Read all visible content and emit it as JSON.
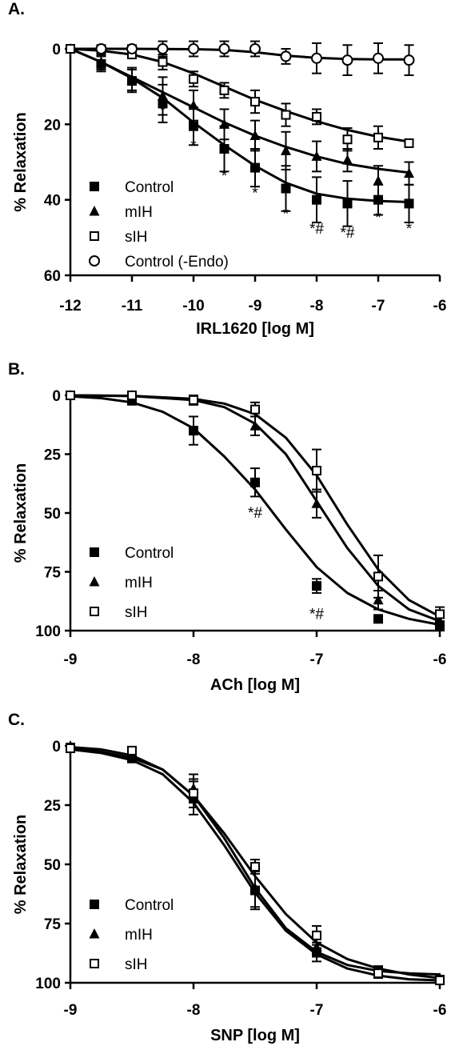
{
  "chart_data": [
    {
      "type": "line",
      "panel_label": "A.",
      "xlabel": "IRL1620 [log M]",
      "ylabel": "% Relaxation",
      "xlim": [
        -12,
        -6
      ],
      "ylim": [
        0,
        60
      ],
      "y_inverted": true,
      "xticks": [
        -12,
        -11,
        -10,
        -9,
        -8,
        -7,
        -6
      ],
      "yticks": [
        0,
        20,
        40,
        60
      ],
      "legend": "bottom-left",
      "series": [
        {
          "name": "Control",
          "marker": "square-filled",
          "x": [
            -12,
            -11.5,
            -11,
            -10.5,
            -10,
            -9.5,
            -9,
            -8.5,
            -8,
            -7.5,
            -7,
            -6.5
          ],
          "y": [
            0,
            4,
            8.5,
            14.5,
            20.5,
            26.5,
            31.5,
            37,
            40,
            41,
            40,
            41
          ],
          "err": [
            0,
            2,
            3,
            5,
            5,
            6,
            5,
            6,
            6,
            6,
            4,
            5
          ],
          "fit": [
            [
              -12,
              0
            ],
            [
              -11.5,
              3.5
            ],
            [
              -11,
              7.8
            ],
            [
              -10.5,
              13
            ],
            [
              -10,
              19.5
            ],
            [
              -9.5,
              25.5
            ],
            [
              -9,
              31
            ],
            [
              -8.5,
              35.5
            ],
            [
              -8,
              38.4
            ],
            [
              -7.5,
              39.7
            ],
            [
              -7,
              40.3
            ],
            [
              -6.5,
              40.6
            ]
          ]
        },
        {
          "name": "mIH",
          "marker": "triangle-filled",
          "x": [
            -12,
            -11.5,
            -11,
            -10.5,
            -10,
            -9.5,
            -9,
            -8.5,
            -8,
            -7.5,
            -7,
            -6.5
          ],
          "y": [
            0,
            3.5,
            8,
            12.5,
            15,
            20,
            23,
            27,
            28.5,
            29.5,
            35,
            33
          ],
          "err": [
            0,
            2,
            3,
            5,
            4,
            4,
            4,
            5,
            4,
            3,
            4,
            3
          ],
          "fit": [
            [
              -12,
              0
            ],
            [
              -11.5,
              3.5
            ],
            [
              -11,
              7.5
            ],
            [
              -10.5,
              11.5
            ],
            [
              -10,
              15.5
            ],
            [
              -9.5,
              19.5
            ],
            [
              -9,
              23
            ],
            [
              -8.5,
              26
            ],
            [
              -8,
              28.5
            ],
            [
              -7.5,
              30.5
            ],
            [
              -7,
              31.8
            ],
            [
              -6.5,
              32.8
            ]
          ]
        },
        {
          "name": "sIH",
          "marker": "square-open",
          "x": [
            -12,
            -11.5,
            -11,
            -10.5,
            -10,
            -9.5,
            -9,
            -8.5,
            -8,
            -7.5,
            -7,
            -6.5
          ],
          "y": [
            0,
            0.5,
            1.5,
            3.5,
            8,
            11,
            14,
            17.5,
            18,
            24,
            23.5,
            25
          ],
          "err": [
            0,
            1,
            1,
            2,
            2,
            2,
            3,
            3,
            2,
            3,
            3,
            1
          ],
          "fit": [
            [
              -12,
              0
            ],
            [
              -11.5,
              0.5
            ],
            [
              -11,
              1.5
            ],
            [
              -10.5,
              3.5
            ],
            [
              -10,
              6.5
            ],
            [
              -9.5,
              10
            ],
            [
              -9,
              13.5
            ],
            [
              -8.5,
              16.5
            ],
            [
              -8,
              19.2
            ],
            [
              -7.5,
              21.5
            ],
            [
              -7,
              23.3
            ],
            [
              -6.5,
              24.6
            ]
          ]
        },
        {
          "name": "Control (-Endo)",
          "marker": "circle-open",
          "x": [
            -11.5,
            -11,
            -10.5,
            -10,
            -9.5,
            -9,
            -8.5,
            -8,
            -7.5,
            -7,
            -6.5
          ],
          "y": [
            0,
            0,
            0,
            0,
            0,
            0,
            2,
            2.5,
            3,
            2.5,
            3
          ],
          "err": [
            1,
            1,
            2,
            2,
            2,
            2,
            2,
            4,
            4,
            4,
            4
          ],
          "fit": [
            [
              -12,
              0
            ],
            [
              -11,
              0
            ],
            [
              -10,
              0.1
            ],
            [
              -9.5,
              0.3
            ],
            [
              -9,
              0.9
            ],
            [
              -8.5,
              1.8
            ],
            [
              -8,
              2.4
            ],
            [
              -7.5,
              2.7
            ],
            [
              -7,
              2.8
            ],
            [
              -6.5,
              2.8
            ]
          ]
        }
      ],
      "annotations": [
        {
          "x": -10.5,
          "y": 17.5,
          "text": "*"
        },
        {
          "x": -10,
          "y": 27,
          "text": "*"
        },
        {
          "x": -9.5,
          "y": 35,
          "text": "*"
        },
        {
          "x": -9,
          "y": 39.5,
          "text": "*"
        },
        {
          "x": -8.5,
          "y": 45,
          "text": "*"
        },
        {
          "x": -8,
          "y": 49,
          "text": "*#"
        },
        {
          "x": -7.5,
          "y": 50,
          "text": "*#"
        },
        {
          "x": -7,
          "y": 46,
          "text": "*"
        },
        {
          "x": -6.5,
          "y": 49,
          "text": "*"
        }
      ]
    },
    {
      "type": "line",
      "panel_label": "B.",
      "xlabel": "ACh [log M]",
      "ylabel": "% Relaxation",
      "xlim": [
        -9,
        -6
      ],
      "ylim": [
        0,
        100
      ],
      "y_inverted": true,
      "xticks": [
        -9,
        -8,
        -7,
        -6
      ],
      "yticks": [
        0,
        25,
        50,
        75,
        100
      ],
      "legend": "bottom-left",
      "series": [
        {
          "name": "Control",
          "marker": "square-filled",
          "x": [
            -9,
            -8.5,
            -8,
            -7.5,
            -7,
            -6.5,
            -6
          ],
          "y": [
            0,
            2,
            15,
            37,
            81,
            95,
            98
          ],
          "err": [
            1,
            2,
            6,
            6,
            3,
            1,
            2
          ],
          "fit": [
            [
              -9,
              0.4
            ],
            [
              -8.75,
              1.2
            ],
            [
              -8.5,
              3
            ],
            [
              -8.25,
              7
            ],
            [
              -8,
              14
            ],
            [
              -7.75,
              26
            ],
            [
              -7.5,
              40
            ],
            [
              -7.25,
              57
            ],
            [
              -7,
              73
            ],
            [
              -6.75,
              84
            ],
            [
              -6.5,
              91
            ],
            [
              -6.25,
              95
            ],
            [
              -6,
              97.5
            ]
          ]
        },
        {
          "name": "mIH",
          "marker": "triangle-filled",
          "x": [
            -9,
            -8.5,
            -8,
            -7.5,
            -7,
            -6.5,
            -6
          ],
          "y": [
            0,
            0,
            2,
            13,
            46,
            87,
            96
          ],
          "err": [
            1,
            1,
            2,
            4,
            6,
            4,
            2
          ],
          "fit": [
            [
              -9,
              0
            ],
            [
              -8.5,
              0.3
            ],
            [
              -8,
              2
            ],
            [
              -7.75,
              5
            ],
            [
              -7.5,
              12
            ],
            [
              -7.25,
              25
            ],
            [
              -7,
              45
            ],
            [
              -6.75,
              65
            ],
            [
              -6.5,
              81
            ],
            [
              -6.25,
              91
            ],
            [
              -6,
              96
            ]
          ]
        },
        {
          "name": "sIH",
          "marker": "square-open",
          "x": [
            -9,
            -8.5,
            -8,
            -7.5,
            -7,
            -6.5,
            -6
          ],
          "y": [
            0,
            0,
            2,
            6,
            32,
            77,
            93
          ],
          "err": [
            1,
            1,
            2,
            3,
            9,
            9,
            3
          ],
          "fit": [
            [
              -9,
              0
            ],
            [
              -8.5,
              0.2
            ],
            [
              -8,
              1.5
            ],
            [
              -7.75,
              3.5
            ],
            [
              -7.5,
              8
            ],
            [
              -7.25,
              18
            ],
            [
              -7,
              34
            ],
            [
              -6.75,
              55
            ],
            [
              -6.5,
              74
            ],
            [
              -6.25,
              87
            ],
            [
              -6,
              94
            ]
          ]
        }
      ],
      "annotations": [
        {
          "x": -7.5,
          "y": 52,
          "text": "*#"
        },
        {
          "x": -7,
          "y": 95,
          "text": "*#"
        }
      ]
    },
    {
      "type": "line",
      "panel_label": "C.",
      "xlabel": "SNP [log M]",
      "ylabel": "% Relaxation",
      "xlim": [
        -9,
        -6
      ],
      "ylim": [
        0,
        100
      ],
      "y_inverted": true,
      "xticks": [
        -9,
        -8,
        -7,
        -6
      ],
      "yticks": [
        0,
        25,
        50,
        75,
        100
      ],
      "legend": "bottom-left",
      "series": [
        {
          "name": "Control",
          "marker": "square-filled",
          "x": [
            -9,
            -8.5,
            -8,
            -7.5,
            -7,
            -6.5,
            -6
          ],
          "y": [
            1,
            5,
            22,
            61,
            87,
            95,
            99
          ],
          "err": [
            1,
            2,
            7,
            8,
            4,
            2,
            1
          ],
          "fit": [
            [
              -9,
              1.5
            ],
            [
              -8.75,
              3
            ],
            [
              -8.5,
              6
            ],
            [
              -8.25,
              12
            ],
            [
              -8,
              24
            ],
            [
              -7.75,
              42
            ],
            [
              -7.5,
              62
            ],
            [
              -7.25,
              78
            ],
            [
              -7,
              88
            ],
            [
              -6.75,
              94
            ],
            [
              -6.5,
              97
            ],
            [
              -6.25,
              98.5
            ],
            [
              -6,
              99
            ]
          ]
        },
        {
          "name": "mIH",
          "marker": "triangle-filled",
          "x": [
            -9,
            -8.5,
            -8,
            -7.5,
            -7,
            -6.5,
            -6
          ],
          "y": [
            0,
            4,
            18,
            60,
            85,
            95,
            98
          ],
          "err": [
            1,
            2,
            6,
            8,
            4,
            2,
            1
          ],
          "fit": [
            [
              -9,
              1
            ],
            [
              -8.75,
              2.5
            ],
            [
              -8.5,
              5
            ],
            [
              -8.25,
              10
            ],
            [
              -8,
              21
            ],
            [
              -7.75,
              39
            ],
            [
              -7.5,
              60
            ],
            [
              -7.25,
              77
            ],
            [
              -7,
              87
            ],
            [
              -6.75,
              92.5
            ],
            [
              -6.5,
              95
            ],
            [
              -6.25,
              96
            ],
            [
              -6,
              96.5
            ]
          ]
        },
        {
          "name": "sIH",
          "marker": "square-open",
          "x": [
            -9,
            -8.5,
            -8,
            -7.5,
            -7,
            -6.5,
            -6
          ],
          "y": [
            1,
            2,
            20,
            51,
            80,
            96,
            99
          ],
          "err": [
            1,
            1,
            6,
            3,
            4,
            2,
            1
          ],
          "fit": [
            [
              -9,
              0.5
            ],
            [
              -8.75,
              1.5
            ],
            [
              -8.5,
              4
            ],
            [
              -8.25,
              10
            ],
            [
              -8,
              21
            ],
            [
              -7.75,
              37
            ],
            [
              -7.5,
              55
            ],
            [
              -7.25,
              71
            ],
            [
              -7,
              83
            ],
            [
              -6.75,
              90
            ],
            [
              -6.5,
              94
            ],
            [
              -6.25,
              96.5
            ],
            [
              -6,
              98
            ]
          ]
        }
      ],
      "annotations": []
    }
  ]
}
